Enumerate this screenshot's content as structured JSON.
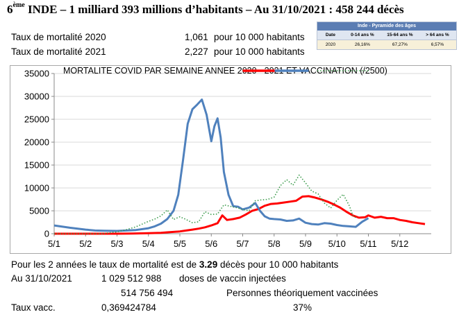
{
  "header": {
    "rank": "6",
    "rank_sup": "ème",
    "title": "INDE – 1 milliard 393 millions d’habitants – Au 31/10/2021 : 458 244 décès"
  },
  "rates": [
    {
      "label": "Taux de mortalité 2020",
      "value": "1,061",
      "unit": "pour 10 000 habitants"
    },
    {
      "label": "Taux de mortalité 2021",
      "value": "2,227",
      "unit": "pour 10 000 habitants"
    }
  ],
  "pyramid": {
    "title": "Inde - Pyramide des âges",
    "columns": [
      "Date",
      "0-14 ans %",
      "15-64 ans %",
      "> 64 ans %"
    ],
    "row": [
      "2020",
      "26,16%",
      "67,27%",
      "6,57%"
    ],
    "header_color": "#5b7db3"
  },
  "chart_data": {
    "type": "line",
    "title": "MORTALITE COVID PAR SEMAINE ANNEE 2020 - 2021 ET VACCINATION (/2500)",
    "xlabel": "",
    "ylabel": "",
    "ylim": [
      0,
      35000
    ],
    "yticks": [
      "0",
      "5000",
      "10000",
      "15000",
      "20000",
      "25000",
      "30000",
      "35000"
    ],
    "xticks": [
      "5/1",
      "5/2",
      "5/3",
      "5/4",
      "5/5",
      "5/6",
      "5/7",
      "5/8",
      "5/9",
      "5/10",
      "5/11",
      "5/12"
    ],
    "grid": "horizontal",
    "legend": "top-right",
    "series": [
      {
        "id": "red",
        "color": "#ff0000",
        "style": "solid",
        "x": [
          0,
          0.5,
          1,
          1.5,
          2,
          2.5,
          3,
          3.2,
          3.4,
          3.6,
          3.8,
          4,
          4.2,
          4.4,
          4.6,
          4.8,
          5,
          5.2,
          5.35,
          5.5,
          5.7,
          5.9,
          6.1,
          6.3,
          6.5,
          6.7,
          6.9,
          7.1,
          7.3,
          7.5,
          7.7,
          7.9,
          8.1,
          8.3,
          8.5,
          8.7,
          8.9,
          9.1,
          9.3,
          9.5,
          9.7,
          9.9,
          10,
          10.2,
          10.4,
          10.6,
          10.8,
          11,
          11.2,
          11.4,
          11.6,
          11.8
        ],
        "y": [
          0,
          0,
          0,
          0,
          0,
          50,
          100,
          150,
          200,
          300,
          400,
          500,
          700,
          900,
          1100,
          1400,
          1800,
          2300,
          4000,
          3000,
          3200,
          3500,
          4200,
          5000,
          5400,
          6100,
          6500,
          6600,
          6800,
          7000,
          7200,
          8100,
          8200,
          7900,
          7500,
          7000,
          6400,
          5700,
          4800,
          4000,
          3500,
          3600,
          4000,
          3500,
          3700,
          3400,
          3400,
          3000,
          2800,
          2500,
          2300,
          2100
        ]
      },
      {
        "id": "blue",
        "color": "#4f81bd",
        "style": "solid",
        "x": [
          0,
          0.5,
          1,
          1.3,
          1.6,
          2,
          2.3,
          2.6,
          3,
          3.2,
          3.4,
          3.6,
          3.8,
          3.95,
          4.1,
          4.25,
          4.4,
          4.55,
          4.7,
          4.85,
          5,
          5.1,
          5.2,
          5.3,
          5.4,
          5.55,
          5.7,
          5.85,
          6,
          6.2,
          6.4,
          6.55,
          6.7,
          6.85,
          7,
          7.2,
          7.4,
          7.6,
          7.8,
          8,
          8.2,
          8.4,
          8.6,
          8.8,
          9,
          9.2,
          9.4,
          9.6,
          9.8,
          10
        ],
        "y": [
          1800,
          1300,
          900,
          700,
          650,
          600,
          700,
          800,
          1200,
          1600,
          2200,
          3200,
          5000,
          8500,
          16000,
          24000,
          27200,
          28200,
          29300,
          26000,
          20200,
          23500,
          25200,
          21000,
          13500,
          8500,
          6000,
          5900,
          5300,
          5700,
          6700,
          5000,
          3800,
          3300,
          3200,
          3100,
          2800,
          2900,
          3300,
          2400,
          2100,
          2000,
          2300,
          2200,
          1900,
          1700,
          1600,
          1500,
          2600,
          3400
        ]
      },
      {
        "id": "green",
        "color": "#3a9a4a",
        "style": "dotted",
        "x": [
          0,
          0.5,
          1,
          1.5,
          2,
          2.3,
          2.6,
          3,
          3.2,
          3.4,
          3.6,
          3.8,
          4,
          4.2,
          4.4,
          4.6,
          4.8,
          5,
          5.2,
          5.4,
          5.6,
          5.8,
          6,
          6.2,
          6.4,
          6.6,
          6.8,
          7,
          7.2,
          7.4,
          7.6,
          7.8,
          8,
          8.2,
          8.4,
          8.6,
          8.8,
          9,
          9.2,
          9.4,
          9.5,
          9.6
        ],
        "y": [
          0,
          0,
          0,
          0,
          400,
          900,
          1500,
          2700,
          3200,
          3900,
          5200,
          3100,
          3700,
          3100,
          2400,
          2600,
          4800,
          4200,
          4300,
          6300,
          6000,
          5700,
          5300,
          5000,
          7200,
          7400,
          7500,
          8000,
          10500,
          11800,
          10600,
          12800,
          11100,
          9300,
          8700,
          6700,
          5600,
          7300,
          8600,
          6000,
          4000,
          3500
        ]
      }
    ]
  }
}
